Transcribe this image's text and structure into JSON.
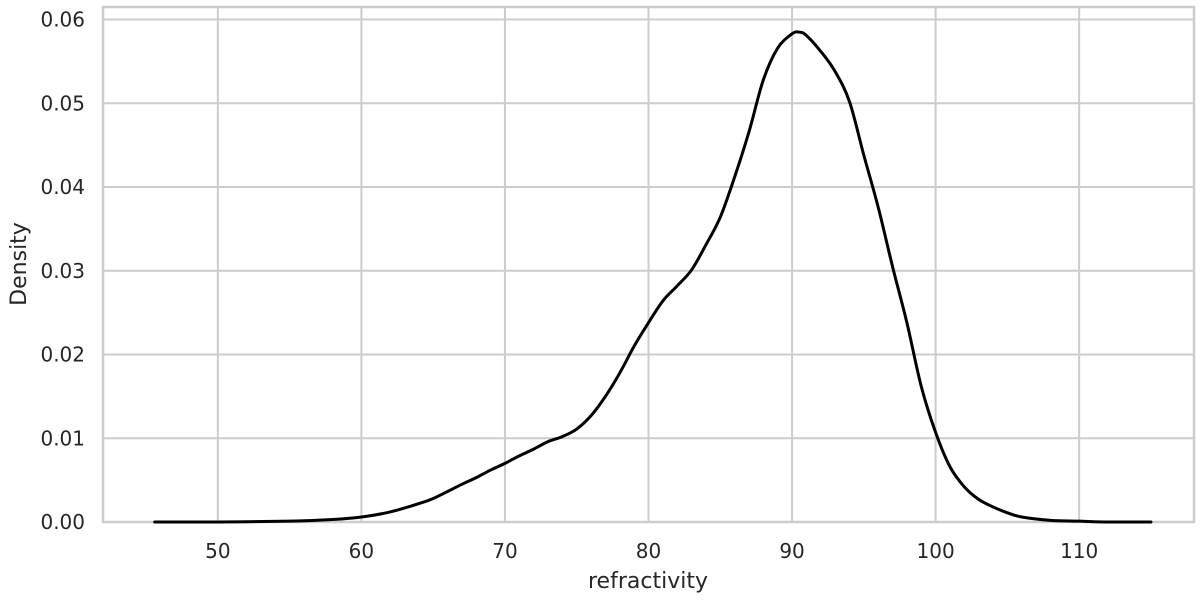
{
  "chart_data": {
    "type": "line",
    "xlabel": "refractivity",
    "ylabel": "Density",
    "xlim": [
      42,
      118
    ],
    "ylim": [
      0,
      0.0615
    ],
    "xticks": [
      50,
      60,
      70,
      80,
      90,
      100,
      110
    ],
    "yticks": [
      0.0,
      0.01,
      0.02,
      0.03,
      0.04,
      0.05,
      0.06
    ],
    "xtick_labels": [
      "50",
      "60",
      "70",
      "80",
      "90",
      "100",
      "110"
    ],
    "ytick_labels": [
      "0.00",
      "0.01",
      "0.02",
      "0.03",
      "0.04",
      "0.05",
      "0.06"
    ],
    "grid": true,
    "line_color": "#000000",
    "series": [
      {
        "x": [
          45.6,
          50,
          55,
          58,
          60,
          62,
          64,
          65,
          67,
          68,
          69,
          70,
          71,
          72,
          73,
          74,
          75,
          76,
          77,
          78,
          79,
          80,
          81,
          82,
          83,
          84,
          85,
          86,
          87,
          88,
          89,
          90,
          90.5,
          91,
          92,
          93,
          94,
          95,
          96,
          97,
          98,
          99,
          100,
          101,
          102,
          103,
          104,
          105,
          106,
          108,
          110,
          112,
          115
        ],
        "y": [
          0.0,
          0.0,
          0.0001,
          0.0003,
          0.0006,
          0.0012,
          0.0022,
          0.0028,
          0.0045,
          0.0053,
          0.0062,
          0.007,
          0.0079,
          0.0087,
          0.0096,
          0.0102,
          0.0111,
          0.0127,
          0.015,
          0.0178,
          0.021,
          0.0238,
          0.0264,
          0.0282,
          0.0301,
          0.0331,
          0.0364,
          0.0412,
          0.0466,
          0.0528,
          0.0566,
          0.0583,
          0.0585,
          0.0581,
          0.0562,
          0.0538,
          0.0502,
          0.0438,
          0.0376,
          0.0305,
          0.0238,
          0.0162,
          0.0107,
          0.0066,
          0.0042,
          0.0027,
          0.0018,
          0.0011,
          0.0006,
          0.0002,
          0.0001,
          0.0,
          0.0
        ]
      }
    ]
  }
}
